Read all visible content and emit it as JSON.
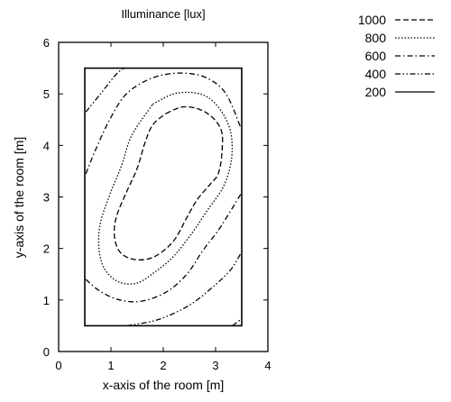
{
  "chart_data": {
    "type": "contour",
    "title": "Illuminance [lux]",
    "xlabel": "x-axis of the room [m]",
    "ylabel": "y-axis of the room [m]",
    "xlim": [
      0,
      4
    ],
    "ylim": [
      0,
      6
    ],
    "xticks": [
      "0",
      "1",
      "2",
      "3",
      "4"
    ],
    "yticks": [
      "0",
      "1",
      "2",
      "3",
      "4",
      "5",
      "6"
    ],
    "room": {
      "x": [
        0.5,
        3.5
      ],
      "y": [
        0.5,
        5.5
      ]
    },
    "legend_position": "top-right, outside plot",
    "series": [
      {
        "name": "1000",
        "style": "dashed",
        "points": [
          [
            2.05,
            4.62
          ],
          [
            2.4,
            4.75
          ],
          [
            2.8,
            4.65
          ],
          [
            3.1,
            4.32
          ],
          [
            3.12,
            3.85
          ],
          [
            3.05,
            3.45
          ],
          [
            2.9,
            3.25
          ],
          [
            2.65,
            2.95
          ],
          [
            2.45,
            2.6
          ],
          [
            2.2,
            2.15
          ],
          [
            1.85,
            1.85
          ],
          [
            1.5,
            1.78
          ],
          [
            1.2,
            1.9
          ],
          [
            1.07,
            2.2
          ],
          [
            1.1,
            2.6
          ],
          [
            1.3,
            3.1
          ],
          [
            1.5,
            3.55
          ],
          [
            1.65,
            4.05
          ],
          [
            1.8,
            4.4
          ],
          [
            2.05,
            4.62
          ]
        ]
      },
      {
        "name": "800",
        "style": "dotted",
        "points": [
          [
            1.8,
            4.8
          ],
          [
            2.2,
            5.0
          ],
          [
            2.6,
            5.02
          ],
          [
            2.9,
            4.9
          ],
          [
            3.15,
            4.6
          ],
          [
            3.3,
            4.2
          ],
          [
            3.3,
            3.7
          ],
          [
            3.15,
            3.2
          ],
          [
            2.85,
            2.75
          ],
          [
            2.55,
            2.3
          ],
          [
            2.2,
            1.85
          ],
          [
            1.85,
            1.55
          ],
          [
            1.5,
            1.33
          ],
          [
            1.15,
            1.35
          ],
          [
            0.88,
            1.6
          ],
          [
            0.77,
            2.0
          ],
          [
            0.8,
            2.5
          ],
          [
            1.0,
            3.1
          ],
          [
            1.2,
            3.6
          ],
          [
            1.4,
            4.2
          ],
          [
            1.8,
            4.8
          ]
        ]
      },
      {
        "name": "600",
        "style": "dashdot",
        "points": [
          [
            0.52,
            3.45
          ],
          [
            0.7,
            3.9
          ],
          [
            0.95,
            4.45
          ],
          [
            1.25,
            4.95
          ],
          [
            1.6,
            5.22
          ],
          [
            2.0,
            5.37
          ],
          [
            2.45,
            5.4
          ],
          [
            2.85,
            5.3
          ],
          [
            3.2,
            5.0
          ],
          [
            3.48,
            4.35
          ]
        ]
      },
      {
        "name": "600",
        "style": "dashdot",
        "points": [
          [
            0.52,
            1.4
          ],
          [
            0.75,
            1.2
          ],
          [
            1.1,
            1.02
          ],
          [
            1.55,
            0.97
          ],
          [
            2.05,
            1.15
          ],
          [
            2.45,
            1.5
          ],
          [
            2.75,
            1.95
          ],
          [
            3.05,
            2.35
          ],
          [
            3.3,
            2.75
          ],
          [
            3.48,
            3.05
          ]
        ]
      },
      {
        "name": "400",
        "style": "dashdotdot",
        "points": [
          [
            0.52,
            4.65
          ],
          [
            0.8,
            5.0
          ],
          [
            1.1,
            5.38
          ],
          [
            1.25,
            5.5
          ]
        ]
      },
      {
        "name": "400",
        "style": "dashdotdot",
        "points": [
          [
            1.3,
            0.5
          ],
          [
            1.9,
            0.62
          ],
          [
            2.5,
            0.9
          ],
          [
            3.0,
            1.3
          ],
          [
            3.3,
            1.6
          ],
          [
            3.48,
            1.9
          ]
        ]
      },
      {
        "name": "400",
        "style": "dashdotdot",
        "points": [
          [
            3.32,
            0.5
          ],
          [
            3.48,
            0.62
          ]
        ]
      }
    ],
    "legend": [
      {
        "label": "1000",
        "style": "dashed"
      },
      {
        "label": "800",
        "style": "dotted"
      },
      {
        "label": "600",
        "style": "dashdot"
      },
      {
        "label": "400",
        "style": "dashdotdot"
      },
      {
        "label": "200",
        "style": "solid"
      }
    ]
  }
}
